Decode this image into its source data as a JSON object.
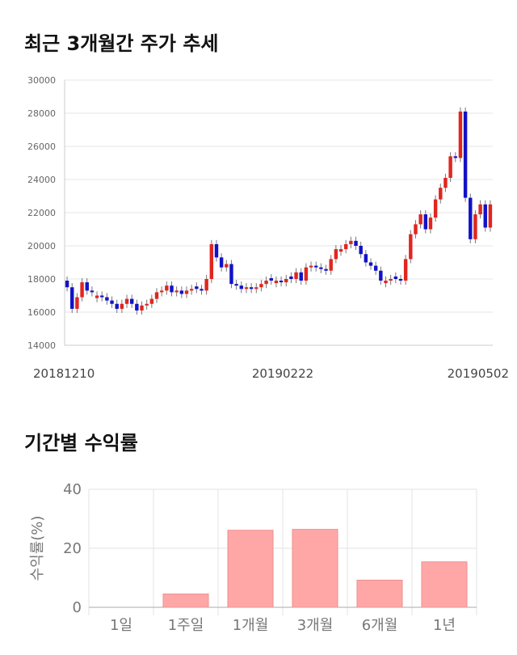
{
  "sections": {
    "price_title": "최근 3개월간 주가 추세",
    "returns_title": "기간별 수익률"
  },
  "colors": {
    "up": "#e0261f",
    "down": "#1212c8",
    "bar": "#ffa7a7",
    "bar_border": "#ee8f8f"
  },
  "chart_data": [
    {
      "type": "candlestick",
      "title": "최근 3개월간 주가 추세",
      "ylim": [
        14000,
        30000
      ],
      "y_ticks": [
        "14000",
        "16000",
        "18000",
        "20000",
        "22000",
        "24000",
        "26000",
        "28000",
        "30000"
      ],
      "x_tick_labels": [
        "20181210",
        "20190222",
        "20190502"
      ],
      "grid": true,
      "closes": [
        17500,
        16200,
        16900,
        17800,
        17300,
        17200,
        17000,
        16900,
        16700,
        16500,
        16200,
        16500,
        16800,
        16500,
        16100,
        16400,
        16500,
        16800,
        17200,
        17300,
        17600,
        17200,
        17300,
        17100,
        17300,
        17400,
        17400,
        17300,
        18000,
        20100,
        19300,
        18700,
        18900,
        17700,
        17600,
        17400,
        17500,
        17400,
        17500,
        17700,
        17900,
        17900,
        17900,
        17800,
        18000,
        18000,
        18400,
        17900,
        18700,
        18800,
        18700,
        18600,
        18500,
        19200,
        19800,
        19800,
        20100,
        20300,
        20000,
        19500,
        19000,
        18800,
        18500,
        17900,
        17900,
        18000,
        18000,
        17900,
        19200,
        20700,
        21300,
        21900,
        21000,
        21700,
        22800,
        23500,
        24100,
        25400,
        25300,
        28100,
        22900,
        20400,
        21900,
        22500,
        21100,
        22500
      ],
      "up_down": [
        "d",
        "d",
        "u",
        "u",
        "d",
        "d",
        "u",
        "d",
        "d",
        "d",
        "d",
        "u",
        "u",
        "d",
        "d",
        "u",
        "u",
        "u",
        "u",
        "u",
        "u",
        "d",
        "u",
        "d",
        "u",
        "u",
        "d",
        "d",
        "u",
        "u",
        "d",
        "d",
        "u",
        "d",
        "d",
        "d",
        "u",
        "d",
        "u",
        "u",
        "u",
        "d",
        "u",
        "d",
        "u",
        "d",
        "u",
        "d",
        "u",
        "u",
        "d",
        "d",
        "d",
        "u",
        "u",
        "u",
        "u",
        "u",
        "d",
        "d",
        "d",
        "d",
        "d",
        "d",
        "u",
        "u",
        "d",
        "d",
        "u",
        "u",
        "u",
        "u",
        "d",
        "u",
        "u",
        "u",
        "u",
        "u",
        "d",
        "u",
        "d",
        "d",
        "u",
        "u",
        "d",
        "u"
      ]
    },
    {
      "type": "bar",
      "categories": [
        "1일",
        "1주일",
        "1개월",
        "3개월",
        "6개월",
        "1년"
      ],
      "values": [
        0,
        4.5,
        26.1,
        26.4,
        9.2,
        15.4
      ],
      "ylabel": "수익률(%)",
      "ylim": [
        0,
        40
      ],
      "y_ticks": [
        "0",
        "20",
        "40"
      ],
      "grid": true
    }
  ]
}
